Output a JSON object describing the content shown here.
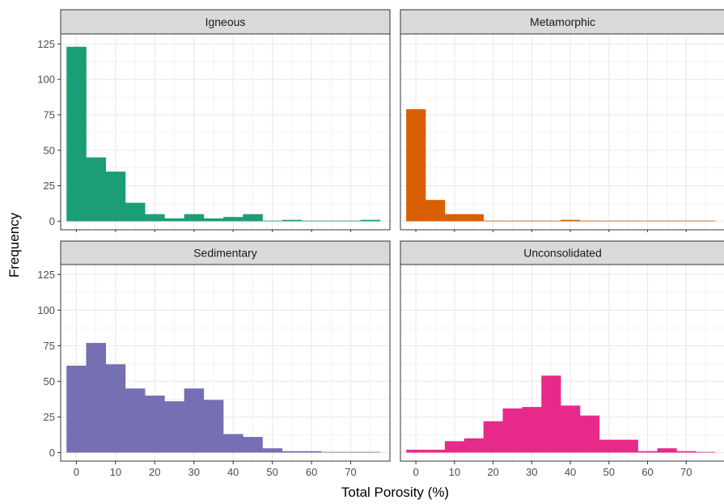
{
  "chart_data": {
    "type": "bar",
    "xlabel": "Total Porosity (%)",
    "ylabel": "Frequency",
    "xlim": [
      -4,
      80
    ],
    "ylim": [
      -6,
      132
    ],
    "x_ticks": [
      0,
      10,
      20,
      30,
      40,
      50,
      60,
      70
    ],
    "y_ticks": [
      0,
      25,
      50,
      75,
      100,
      125
    ],
    "grid": true,
    "bin_width": 5,
    "bin_start": -2.5,
    "bins": [
      "-2.5–2.5",
      "2.5–7.5",
      "7.5–12.5",
      "12.5–17.5",
      "17.5–22.5",
      "22.5–27.5",
      "27.5–32.5",
      "32.5–37.5",
      "37.5–42.5",
      "42.5–47.5",
      "47.5–52.5",
      "52.5–57.5",
      "57.5–62.5",
      "62.5–67.5",
      "67.5–72.5",
      "72.5–77.5"
    ],
    "series": [
      {
        "name": "Igneous",
        "color": "#1b9e77",
        "values": [
          123,
          45,
          35,
          13,
          5,
          2,
          5,
          2,
          3,
          5,
          0,
          1,
          0,
          0,
          0,
          1
        ]
      },
      {
        "name": "Metamorphic",
        "color": "#d95f02",
        "values": [
          79,
          15,
          5,
          5,
          0,
          0,
          0,
          0,
          1,
          0,
          0,
          0,
          0,
          0,
          0,
          0
        ]
      },
      {
        "name": "Sedimentary",
        "color": "#7570b3",
        "values": [
          61,
          77,
          62,
          45,
          40,
          36,
          45,
          37,
          13,
          11,
          3,
          1,
          1,
          0,
          0,
          0
        ]
      },
      {
        "name": "Unconsolidated",
        "color": "#e7298a",
        "values": [
          2,
          2,
          8,
          10,
          22,
          31,
          32,
          54,
          33,
          26,
          9,
          9,
          1,
          3,
          1,
          0
        ]
      }
    ]
  }
}
